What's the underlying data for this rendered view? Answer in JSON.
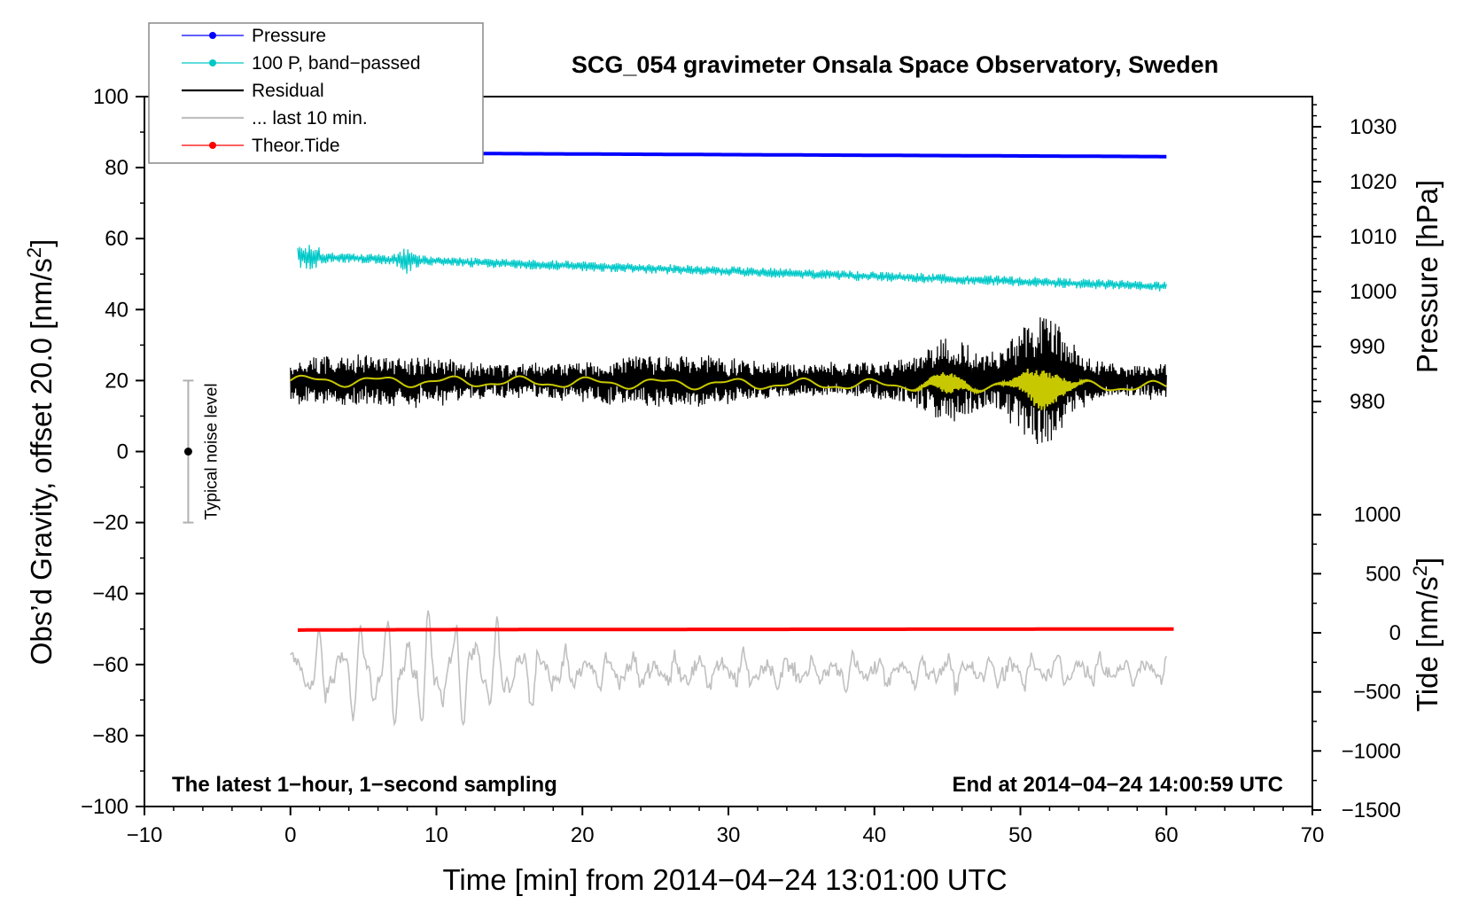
{
  "chart_data": {
    "type": "line",
    "title": "SCG_054 gravimeter Onsala Space Observatory, Sweden",
    "xlabel": "Time [min] from 2014−04−24 13:01:00 UTC",
    "ylabel_left": "Obs’d Gravity, offset 20.0 [nm/s",
    "ylabel_left_sup": "2",
    "ylabel_left_end": "]",
    "ylabel_right_pressure": "Pressure [hPa]",
    "ylabel_right_tide": "Tide [nm/s",
    "ylabel_right_tide_sup": "2",
    "ylabel_right_tide_end": "]",
    "xlim": [
      -10,
      70
    ],
    "ylim_left": [
      -100,
      100
    ],
    "x_ticks": [
      -10,
      0,
      10,
      20,
      30,
      40,
      50,
      60,
      70
    ],
    "x_tick_labels": [
      "−10",
      "0",
      "10",
      "20",
      "30",
      "40",
      "50",
      "60",
      "70"
    ],
    "y_ticks_left": [
      100,
      80,
      60,
      40,
      20,
      0,
      -20,
      -40,
      -60,
      -80,
      -100
    ],
    "y_tick_labels_left": [
      "100",
      "80",
      "60",
      "40",
      "20",
      "0",
      "−20",
      "−40",
      "−60",
      "−80",
      "−100"
    ],
    "pressure_axis": {
      "ticks": [
        1030,
        1020,
        1010,
        1000,
        990,
        980
      ],
      "tick_labels": [
        "1030",
        "1020",
        "1010",
        "1000",
        "990",
        "980"
      ],
      "range_hpa": [
        978,
        1035
      ]
    },
    "tide_axis": {
      "ticks": [
        1000,
        500,
        0,
        -500,
        -1000,
        -1500
      ],
      "tick_labels": [
        "1000",
        "500",
        "0",
        "−500",
        "−1000",
        "−1500"
      ],
      "range": [
        -1500,
        1000
      ]
    },
    "series": [
      {
        "name": "Pressure",
        "color": "#0000ff",
        "x_range": [
          0,
          60
        ],
        "start_gravity": 84.2,
        "end_gravity": 83.1,
        "pressure_hpa_start": 1023.8,
        "pressure_hpa_end": 1023.5
      },
      {
        "name": "100 P, band−passed",
        "color": "#00c8c8",
        "x_range": [
          0.5,
          60
        ],
        "start": 55,
        "end": 46.5
      },
      {
        "name": "Residual",
        "color": "#000000",
        "x_range": [
          0,
          60
        ],
        "level": 20,
        "peak_time": 51.5,
        "peak_amplitude": 22
      },
      {
        "name": "... last 10 min.",
        "color": "#c0c0c0",
        "x_range": [
          0,
          60
        ],
        "level": -62,
        "extremes": [
          -40,
          -85
        ]
      },
      {
        "name": "Theor.Tide",
        "color": "#ff0000",
        "x_range": [
          0.5,
          60.5
        ],
        "start": -50.3,
        "end": -50.0
      }
    ],
    "smoothed_residual": {
      "color": "#c8c800",
      "level": 20
    },
    "legend": [
      {
        "label": "Pressure",
        "color": "#0000ff",
        "marker": true
      },
      {
        "label": "100 P, band−passed",
        "color": "#00c8c8",
        "marker": true
      },
      {
        "label": "Residual",
        "color": "#000000",
        "marker": false
      },
      {
        "label": "... last 10 min.",
        "color": "#c0c0c0",
        "marker": false
      },
      {
        "label": "Theor.Tide",
        "color": "#ff0000",
        "marker": true
      }
    ],
    "legend_placement": "top-left",
    "noise_bar": {
      "label": "Typical noise level",
      "x": -7,
      "center": 0,
      "low": -20,
      "high": 20
    },
    "annotation_left": "The latest 1−hour, 1−second sampling",
    "annotation_right": "End at 2014−04−24 14:00:59 UTC"
  }
}
